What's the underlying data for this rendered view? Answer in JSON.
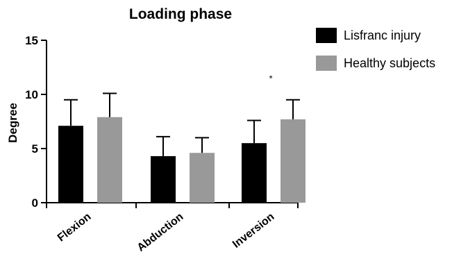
{
  "chart_data": {
    "type": "bar",
    "title": "Loading phase",
    "xlabel": "",
    "ylabel": "Degree",
    "ylim": [
      0,
      15
    ],
    "yticks": [
      0,
      5,
      10,
      15
    ],
    "grid": false,
    "legend_position": "top-right",
    "categories": [
      "Flexion",
      "Abduction",
      "Inversion"
    ],
    "series": [
      {
        "name": "Lisfranc injury",
        "color": "#000000",
        "values": [
          7.1,
          4.3,
          5.5
        ],
        "errors": [
          2.4,
          1.8,
          2.1
        ]
      },
      {
        "name": "Healthy subjects",
        "color": "#999999",
        "values": [
          7.9,
          4.6,
          7.7
        ],
        "errors": [
          2.2,
          1.4,
          1.8
        ]
      }
    ],
    "annotations": [
      {
        "text": "*",
        "category": "Inversion",
        "y": 11.2
      }
    ]
  }
}
